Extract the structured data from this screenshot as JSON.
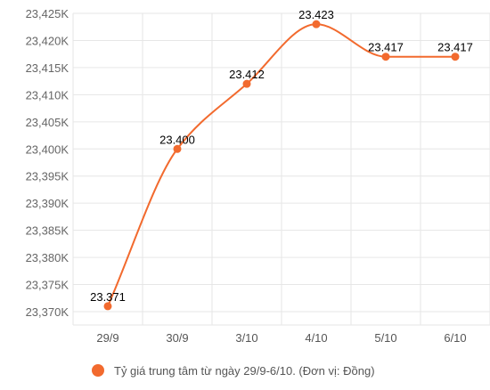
{
  "chart_data": {
    "type": "line",
    "categories": [
      "29/9",
      "30/9",
      "3/10",
      "4/10",
      "5/10",
      "6/10"
    ],
    "series": [
      {
        "name": "Tỷ giá trung tâm từ ngày 29/9-6/10. (Đơn vị: Đồng)",
        "values": [
          23371,
          23400,
          23412,
          23423,
          23417,
          23417
        ],
        "data_labels": [
          "23.371",
          "23.400",
          "23.412",
          "23.423",
          "23.417",
          "23.417"
        ],
        "color": "#f26a2e"
      }
    ],
    "y_ticks": [
      23370,
      23375,
      23380,
      23385,
      23390,
      23395,
      23400,
      23405,
      23410,
      23415,
      23420,
      23425
    ],
    "y_tick_labels": [
      "23,370K",
      "23,375K",
      "23,380K",
      "23,385K",
      "23,390K",
      "23,395K",
      "23,400K",
      "23,405K",
      "23,410K",
      "23,415K",
      "23,420K",
      "23,425K"
    ],
    "ylim": [
      23370,
      23425
    ],
    "grid": true,
    "legend_position": "bottom",
    "grid_color": "#e6e6e6"
  }
}
